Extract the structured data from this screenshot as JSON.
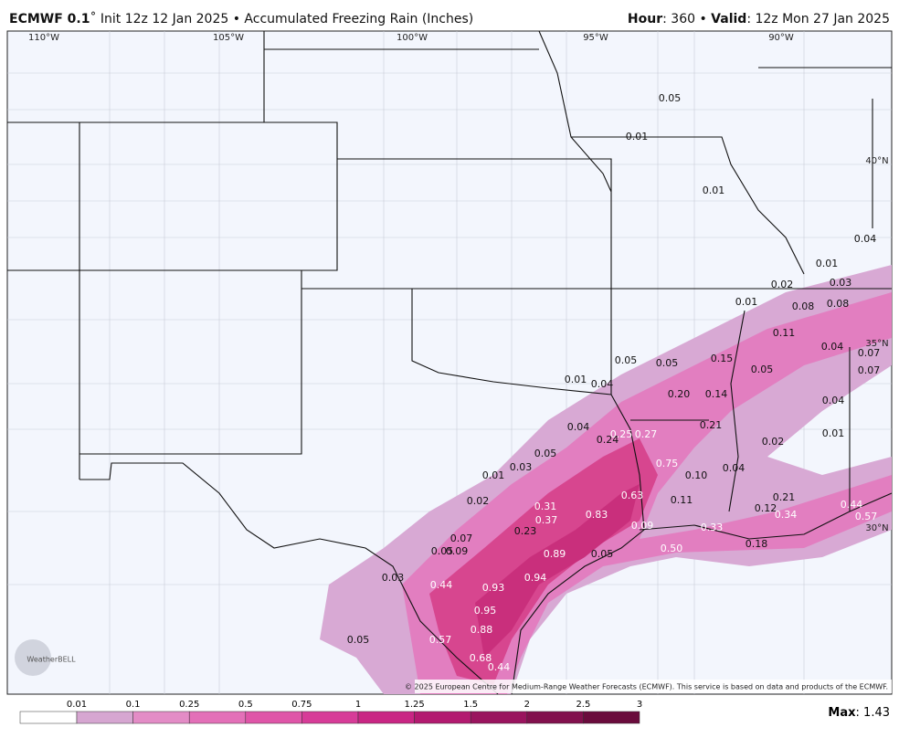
{
  "header": {
    "model": "ECMWF 0.1",
    "run_info": "˚ Init 12z 12 Jan 2025 • Accumulated Freezing Rain (Inches)",
    "hour_key": "Hour",
    "hour_value": ": 360 • ",
    "valid_key": "Valid",
    "valid_value": ": 12z Mon 27 Jan 2025"
  },
  "longitudes": [
    "110°W",
    "105°W",
    "100°W",
    "95°W",
    "90°W"
  ],
  "latitudes": [
    "40°N",
    "35°N",
    "30°N"
  ],
  "map_labels": [
    "0.05",
    "0.01",
    "0.01",
    "0.04",
    "0.01",
    "0.02",
    "0.03",
    "0.01",
    "0.08",
    "0.08",
    "0.11",
    "0.04",
    "0.07",
    "0.07",
    "0.15",
    "0.05",
    "0.05",
    "0.05",
    "0.01",
    "0.04",
    "0.20",
    "0.14",
    "0.04",
    "0.04",
    "0.25",
    "0.27",
    "0.21",
    "0.24",
    "0.02",
    "0.01",
    "0.05",
    "0.75",
    "0.03",
    "0.01",
    "0.10",
    "0.04",
    "0.63",
    "0.11",
    "0.21",
    "0.44",
    "0.02",
    "0.31",
    "0.12",
    "0.37",
    "0.83",
    "0.34",
    "0.57",
    "0.09",
    "0.33",
    "0.23",
    "0.07",
    "0.50",
    "0.18",
    "0.05",
    "0.09",
    "0.89",
    "0.05",
    "0.94",
    "0.03",
    "0.44",
    "0.93",
    "0.95",
    "0.88",
    "0.05",
    "0.57",
    "0.68",
    "0.44"
  ],
  "colorbar": {
    "ticks": [
      "0.01",
      "0.1",
      "0.25",
      "0.5",
      "0.75",
      "1",
      "1.25",
      "1.5",
      "2",
      "2.5",
      "3"
    ],
    "colors": [
      "#ffffff",
      "#d6a6d1",
      "#e38cc6",
      "#e370b8",
      "#df55a8",
      "#d73c98",
      "#c92684",
      "#b31a70",
      "#9a145e",
      "#82104d",
      "#6a0b3c"
    ]
  },
  "max": {
    "key": "Max",
    "value": ": 1.43"
  },
  "credit": "© 2025 European Centre for Medium-Range Weather Forecasts (ECMWF). This service is based on data and products of the ECMWF.",
  "logo": "WeatherBELL"
}
